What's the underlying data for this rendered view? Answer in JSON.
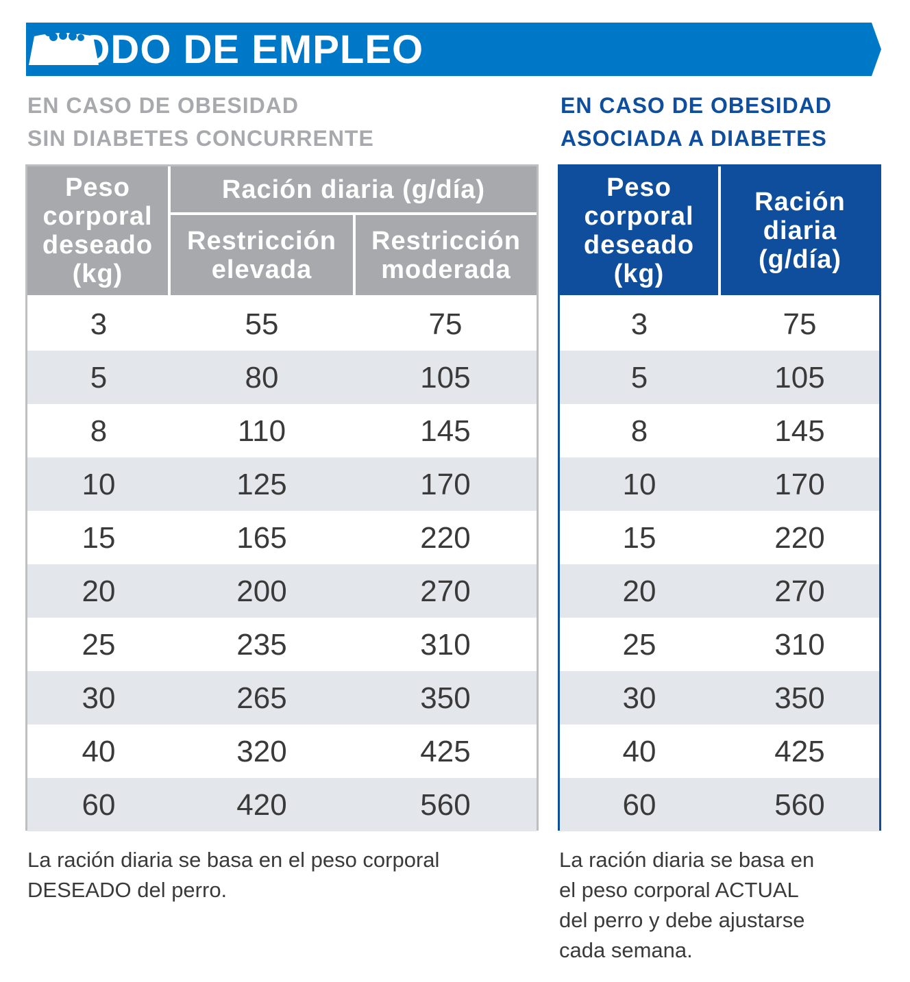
{
  "banner": {
    "title": "MODO DE EMPLEO",
    "icon": "food-bowl-icon",
    "color": "#0078c8"
  },
  "left": {
    "heading": [
      "EN CASO DE OBESIDAD",
      "SIN DIABETES CONCURRENTE"
    ],
    "headers": {
      "weight": [
        "Peso",
        "corporal",
        "deseado",
        "(kg)"
      ],
      "ration": "Ración diaria (g/día)",
      "high": [
        "Restricción",
        "elevada"
      ],
      "moderate": [
        "Restricción",
        "moderada"
      ]
    },
    "rows": [
      [
        "3",
        "55",
        "75"
      ],
      [
        "5",
        "80",
        "105"
      ],
      [
        "8",
        "110",
        "145"
      ],
      [
        "10",
        "125",
        "170"
      ],
      [
        "15",
        "165",
        "220"
      ],
      [
        "20",
        "200",
        "270"
      ],
      [
        "25",
        "235",
        "310"
      ],
      [
        "30",
        "265",
        "350"
      ],
      [
        "40",
        "320",
        "425"
      ],
      [
        "60",
        "420",
        "560"
      ]
    ],
    "note": [
      "La ración diaria se basa en el peso corporal",
      "DESEADO del perro."
    ],
    "color": "#a7a9ac"
  },
  "right": {
    "heading": [
      "EN CASO DE OBESIDAD",
      "ASOCIADA A DIABETES"
    ],
    "headers": {
      "weight": [
        "Peso",
        "corporal",
        "deseado",
        "(kg)"
      ],
      "ration": [
        "Ración",
        "diaria",
        "(g/día)"
      ]
    },
    "rows": [
      [
        "3",
        "75"
      ],
      [
        "5",
        "105"
      ],
      [
        "8",
        "145"
      ],
      [
        "10",
        "170"
      ],
      [
        "15",
        "220"
      ],
      [
        "20",
        "270"
      ],
      [
        "25",
        "310"
      ],
      [
        "30",
        "350"
      ],
      [
        "40",
        "425"
      ],
      [
        "60",
        "560"
      ]
    ],
    "note": [
      "La ración diaria se basa en",
      "el peso corporal ACTUAL",
      "del perro y debe ajustarse",
      "cada semana."
    ],
    "color": "#0e4e9c"
  }
}
